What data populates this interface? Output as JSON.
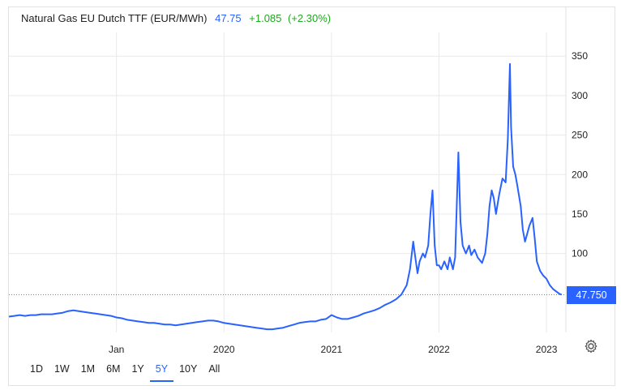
{
  "header": {
    "instrument": "Natural Gas EU Dutch TTF (EUR/MWh)",
    "last": "47.75",
    "change": "+1.085",
    "change_pct": "(+2.30%)"
  },
  "price_tag": "47.750",
  "ranges": [
    {
      "label": "1D",
      "active": false
    },
    {
      "label": "1W",
      "active": false
    },
    {
      "label": "1M",
      "active": false
    },
    {
      "label": "6M",
      "active": false
    },
    {
      "label": "1Y",
      "active": false
    },
    {
      "label": "5Y",
      "active": true
    },
    {
      "label": "10Y",
      "active": false
    },
    {
      "label": "All",
      "active": false
    }
  ],
  "colors": {
    "line": "#2962ff",
    "up": "#1ea81e",
    "grid": "#e9e9e9"
  },
  "icons": {
    "settings": "gear-icon"
  },
  "chart_data": {
    "type": "line",
    "title": "Natural Gas EU Dutch TTF (EUR/MWh)",
    "xlabel": "",
    "ylabel": "",
    "y_axis_side": "right",
    "ylim": [
      0,
      380
    ],
    "yticks": [
      100,
      150,
      200,
      250,
      300,
      350
    ],
    "xlim": [
      2018.0,
      2023.18
    ],
    "xticks": [
      {
        "label": "Jan",
        "x": 2019.0
      },
      {
        "label": "2020",
        "x": 2020.0
      },
      {
        "label": "2021",
        "x": 2021.0
      },
      {
        "label": "2022",
        "x": 2022.0
      },
      {
        "label": "2023",
        "x": 2023.0
      }
    ],
    "grid": true,
    "last_value": 47.75,
    "series": [
      {
        "values": [
          [
            2018.0,
            20
          ],
          [
            2018.05,
            21
          ],
          [
            2018.1,
            22
          ],
          [
            2018.15,
            21
          ],
          [
            2018.2,
            22
          ],
          [
            2018.25,
            22
          ],
          [
            2018.3,
            23
          ],
          [
            2018.35,
            23
          ],
          [
            2018.4,
            23
          ],
          [
            2018.45,
            24
          ],
          [
            2018.5,
            25
          ],
          [
            2018.55,
            27
          ],
          [
            2018.6,
            28
          ],
          [
            2018.65,
            27
          ],
          [
            2018.7,
            26
          ],
          [
            2018.75,
            25
          ],
          [
            2018.8,
            24
          ],
          [
            2018.85,
            23
          ],
          [
            2018.9,
            22
          ],
          [
            2018.95,
            21
          ],
          [
            2019.0,
            19
          ],
          [
            2019.05,
            18
          ],
          [
            2019.1,
            16
          ],
          [
            2019.15,
            15
          ],
          [
            2019.2,
            14
          ],
          [
            2019.25,
            13
          ],
          [
            2019.3,
            12
          ],
          [
            2019.35,
            12
          ],
          [
            2019.4,
            11
          ],
          [
            2019.45,
            10
          ],
          [
            2019.5,
            10
          ],
          [
            2019.55,
            9
          ],
          [
            2019.6,
            10
          ],
          [
            2019.65,
            11
          ],
          [
            2019.7,
            12
          ],
          [
            2019.75,
            13
          ],
          [
            2019.8,
            14
          ],
          [
            2019.85,
            15
          ],
          [
            2019.9,
            15
          ],
          [
            2019.95,
            14
          ],
          [
            2020.0,
            12
          ],
          [
            2020.05,
            11
          ],
          [
            2020.1,
            10
          ],
          [
            2020.15,
            9
          ],
          [
            2020.2,
            8
          ],
          [
            2020.25,
            7
          ],
          [
            2020.3,
            6
          ],
          [
            2020.35,
            5
          ],
          [
            2020.4,
            4
          ],
          [
            2020.45,
            4
          ],
          [
            2020.5,
            5
          ],
          [
            2020.55,
            6
          ],
          [
            2020.6,
            8
          ],
          [
            2020.65,
            10
          ],
          [
            2020.7,
            12
          ],
          [
            2020.75,
            13
          ],
          [
            2020.8,
            14
          ],
          [
            2020.85,
            14
          ],
          [
            2020.9,
            16
          ],
          [
            2020.95,
            17
          ],
          [
            2021.0,
            22
          ],
          [
            2021.05,
            19
          ],
          [
            2021.1,
            17
          ],
          [
            2021.15,
            17
          ],
          [
            2021.2,
            19
          ],
          [
            2021.25,
            21
          ],
          [
            2021.3,
            24
          ],
          [
            2021.35,
            26
          ],
          [
            2021.4,
            28
          ],
          [
            2021.45,
            31
          ],
          [
            2021.5,
            35
          ],
          [
            2021.55,
            38
          ],
          [
            2021.6,
            42
          ],
          [
            2021.65,
            48
          ],
          [
            2021.7,
            60
          ],
          [
            2021.73,
            80
          ],
          [
            2021.76,
            115
          ],
          [
            2021.78,
            95
          ],
          [
            2021.8,
            75
          ],
          [
            2021.82,
            90
          ],
          [
            2021.85,
            100
          ],
          [
            2021.87,
            95
          ],
          [
            2021.9,
            110
          ],
          [
            2021.92,
            150
          ],
          [
            2021.94,
            180
          ],
          [
            2021.96,
            110
          ],
          [
            2021.98,
            85
          ],
          [
            2022.0,
            85
          ],
          [
            2022.02,
            80
          ],
          [
            2022.05,
            90
          ],
          [
            2022.08,
            80
          ],
          [
            2022.1,
            95
          ],
          [
            2022.13,
            80
          ],
          [
            2022.15,
            95
          ],
          [
            2022.17,
            180
          ],
          [
            2022.18,
            228
          ],
          [
            2022.2,
            140
          ],
          [
            2022.22,
            110
          ],
          [
            2022.25,
            100
          ],
          [
            2022.28,
            110
          ],
          [
            2022.3,
            98
          ],
          [
            2022.33,
            105
          ],
          [
            2022.36,
            95
          ],
          [
            2022.4,
            88
          ],
          [
            2022.43,
            100
          ],
          [
            2022.45,
            125
          ],
          [
            2022.47,
            160
          ],
          [
            2022.49,
            180
          ],
          [
            2022.51,
            170
          ],
          [
            2022.53,
            150
          ],
          [
            2022.56,
            175
          ],
          [
            2022.59,
            195
          ],
          [
            2022.62,
            190
          ],
          [
            2022.64,
            245
          ],
          [
            2022.66,
            340
          ],
          [
            2022.67,
            260
          ],
          [
            2022.69,
            210
          ],
          [
            2022.71,
            200
          ],
          [
            2022.73,
            185
          ],
          [
            2022.76,
            160
          ],
          [
            2022.78,
            130
          ],
          [
            2022.8,
            115
          ],
          [
            2022.82,
            125
          ],
          [
            2022.84,
            135
          ],
          [
            2022.87,
            145
          ],
          [
            2022.89,
            120
          ],
          [
            2022.91,
            90
          ],
          [
            2022.94,
            78
          ],
          [
            2022.97,
            72
          ],
          [
            2023.0,
            68
          ],
          [
            2023.03,
            60
          ],
          [
            2023.06,
            55
          ],
          [
            2023.09,
            52
          ],
          [
            2023.12,
            49
          ],
          [
            2023.14,
            47.75
          ]
        ]
      }
    ]
  }
}
